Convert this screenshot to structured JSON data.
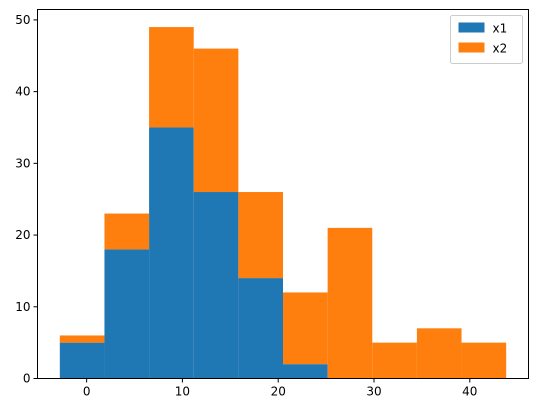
{
  "chart_data": {
    "type": "bar",
    "stacked": true,
    "histogram": true,
    "bin_edges": [
      -2.8,
      1.86,
      6.52,
      11.18,
      15.84,
      20.5,
      25.16,
      29.82,
      34.48,
      39.14,
      43.8
    ],
    "series": [
      {
        "name": "x1",
        "color": "#1f77b4",
        "values": [
          5,
          18,
          35,
          26,
          14,
          2,
          0,
          0,
          0,
          0
        ]
      },
      {
        "name": "x2",
        "color": "#ff7f0e",
        "values": [
          1,
          5,
          14,
          20,
          12,
          10,
          21,
          5,
          7,
          5
        ]
      }
    ],
    "xlim": [
      -5.13,
      46.13
    ],
    "ylim": [
      0,
      51.45
    ],
    "x_ticks": [
      0,
      10,
      20,
      30,
      40
    ],
    "x_tick_labels": [
      "0",
      "10",
      "20",
      "30",
      "40"
    ],
    "y_ticks": [
      0,
      10,
      20,
      30,
      40,
      50
    ],
    "y_tick_labels": [
      "0",
      "10",
      "20",
      "30",
      "40",
      "50"
    ],
    "legend": {
      "placement": "top-right",
      "entries": [
        "x1",
        "x2"
      ]
    },
    "grid": false,
    "title": "",
    "xlabel": "",
    "ylabel": ""
  }
}
